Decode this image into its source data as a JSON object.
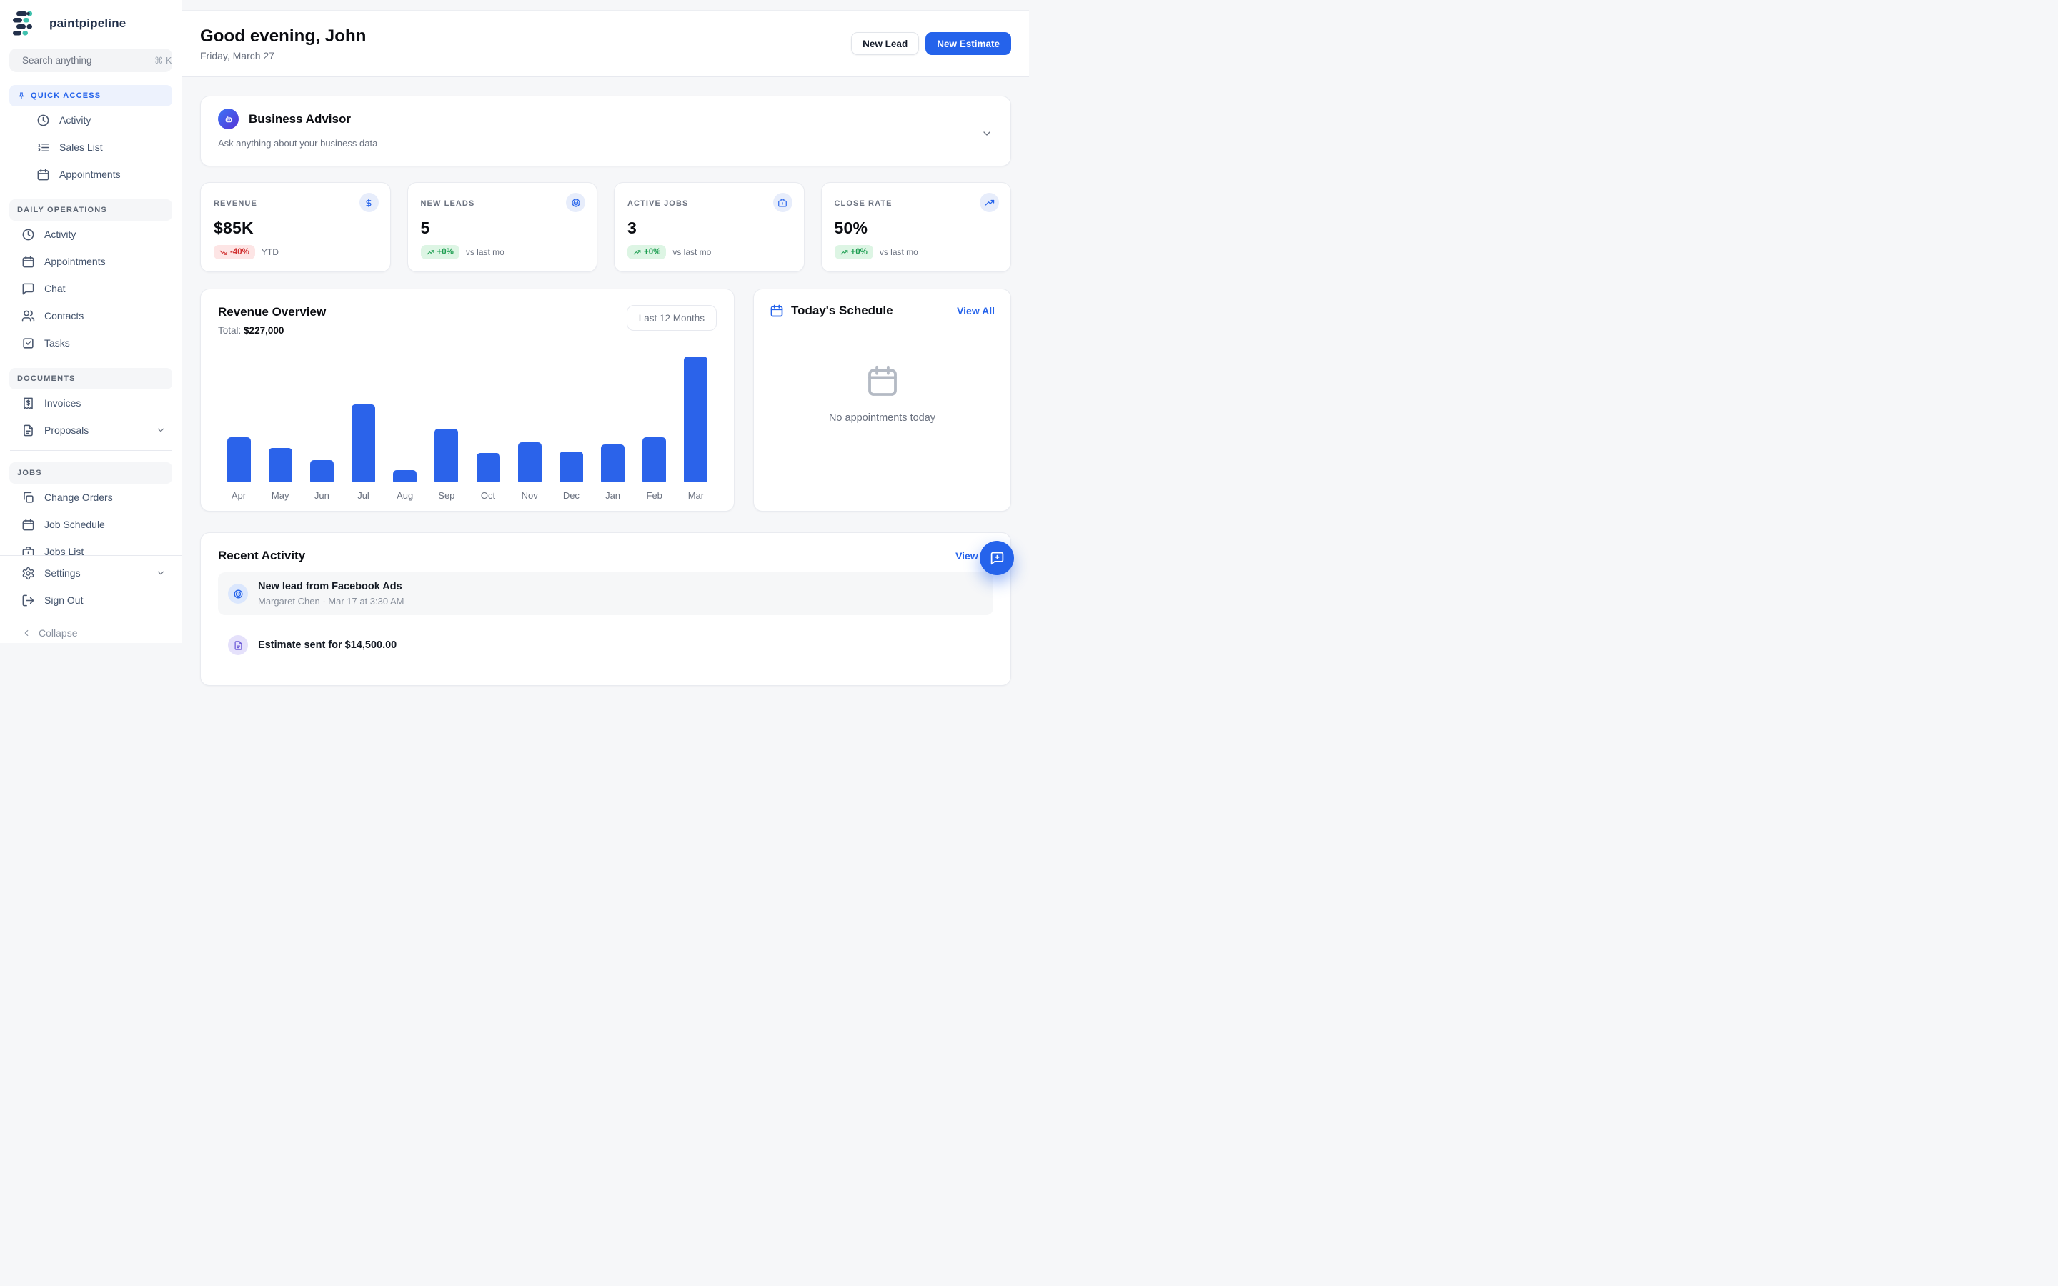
{
  "brand": {
    "name": "paintpipeline"
  },
  "colors": {
    "accent_blue": "#2563eb",
    "logo_navy": "#22304a",
    "logo_teal": "#3fc1ad",
    "bar_blue": "#2b63ea",
    "badge_red_bg": "#fde5e5",
    "badge_red_text": "#d03030",
    "badge_green_bg": "#ddf5e4",
    "badge_green_text": "#1c9d50",
    "advisor_gradient_start": "#3b74f6",
    "advisor_gradient_end": "#5633d6"
  },
  "sidebar": {
    "search": {
      "placeholder": "Search anything",
      "shortcut": "⌘ K"
    },
    "sections": [
      {
        "id": "quick-access",
        "label": "QUICK ACCESS",
        "pinned": true,
        "indent": true,
        "items": [
          {
            "icon": "clock",
            "label": "Activity"
          },
          {
            "icon": "list-ordered",
            "label": "Sales List"
          },
          {
            "icon": "calendar",
            "label": "Appointments"
          }
        ]
      },
      {
        "id": "daily-operations",
        "label": "DAILY OPERATIONS",
        "items": [
          {
            "icon": "clock",
            "label": "Activity"
          },
          {
            "icon": "calendar",
            "label": "Appointments"
          },
          {
            "icon": "chat",
            "label": "Chat"
          },
          {
            "icon": "users",
            "label": "Contacts"
          },
          {
            "icon": "check-square",
            "label": "Tasks"
          }
        ]
      },
      {
        "id": "documents",
        "label": "DOCUMENTS",
        "divider_after": true,
        "items": [
          {
            "icon": "receipt",
            "label": "Invoices"
          },
          {
            "icon": "file",
            "label": "Proposals",
            "chevron": true
          }
        ]
      },
      {
        "id": "jobs",
        "label": "JOBS",
        "items": [
          {
            "icon": "copy",
            "label": "Change Orders"
          },
          {
            "icon": "calendar",
            "label": "Job Schedule"
          },
          {
            "icon": "briefcase",
            "label": "Jobs List"
          }
        ]
      }
    ],
    "footer_items": [
      {
        "icon": "gear",
        "label": "Settings",
        "chevron": true
      },
      {
        "icon": "logout",
        "label": "Sign Out"
      }
    ],
    "collapse_label": "Collapse"
  },
  "header": {
    "greeting": "Good evening, John",
    "date": "Friday, March 27",
    "buttons": {
      "new_lead": "New Lead",
      "new_estimate": "New Estimate"
    }
  },
  "advisor": {
    "title": "Business Advisor",
    "subtitle": "Ask anything about your business data"
  },
  "stats": [
    {
      "label": "REVENUE",
      "value": "$85K",
      "icon": "dollar",
      "badge": "-40%",
      "badge_dir": "down",
      "suffix": "YTD"
    },
    {
      "label": "NEW LEADS",
      "value": "5",
      "icon": "target",
      "badge": "+0%",
      "badge_dir": "up",
      "suffix": "vs last mo"
    },
    {
      "label": "ACTIVE JOBS",
      "value": "3",
      "icon": "briefcase",
      "badge": "+0%",
      "badge_dir": "up",
      "suffix": "vs last mo"
    },
    {
      "label": "CLOSE RATE",
      "value": "50%",
      "icon": "trend-up",
      "badge": "+0%",
      "badge_dir": "up",
      "suffix": "vs last mo"
    }
  ],
  "revenue": {
    "title": "Revenue Overview",
    "total_label": "Total:",
    "total_value": "$227,000",
    "range_label": "Last 12 Months"
  },
  "chart_data": {
    "type": "bar",
    "title": "Revenue Overview",
    "categories": [
      "Apr",
      "May",
      "Jun",
      "Jul",
      "Aug",
      "Sep",
      "Oct",
      "Nov",
      "Dec",
      "Jan",
      "Feb",
      "Mar"
    ],
    "values": [
      18500,
      14000,
      9000,
      32000,
      5000,
      22000,
      12000,
      16500,
      12500,
      15500,
      18500,
      51500
    ],
    "total": 227000,
    "xlabel": "",
    "ylabel": "",
    "ylim": [
      0,
      52000
    ],
    "grid": false,
    "legend": false,
    "bar_color": "#2b63ea"
  },
  "schedule": {
    "title": "Today's Schedule",
    "view_all": "View All",
    "empty": "No appointments today"
  },
  "activity": {
    "title": "Recent Activity",
    "view_all": "View All",
    "items": [
      {
        "icon": "target",
        "color": "blue",
        "highlight": true,
        "title": "New lead from Facebook Ads",
        "meta": "Margaret Chen   ·   Mar 17 at 3:30 AM"
      },
      {
        "icon": "file",
        "color": "purple",
        "highlight": false,
        "title": "Estimate sent for $14,500.00",
        "meta": ""
      }
    ]
  }
}
